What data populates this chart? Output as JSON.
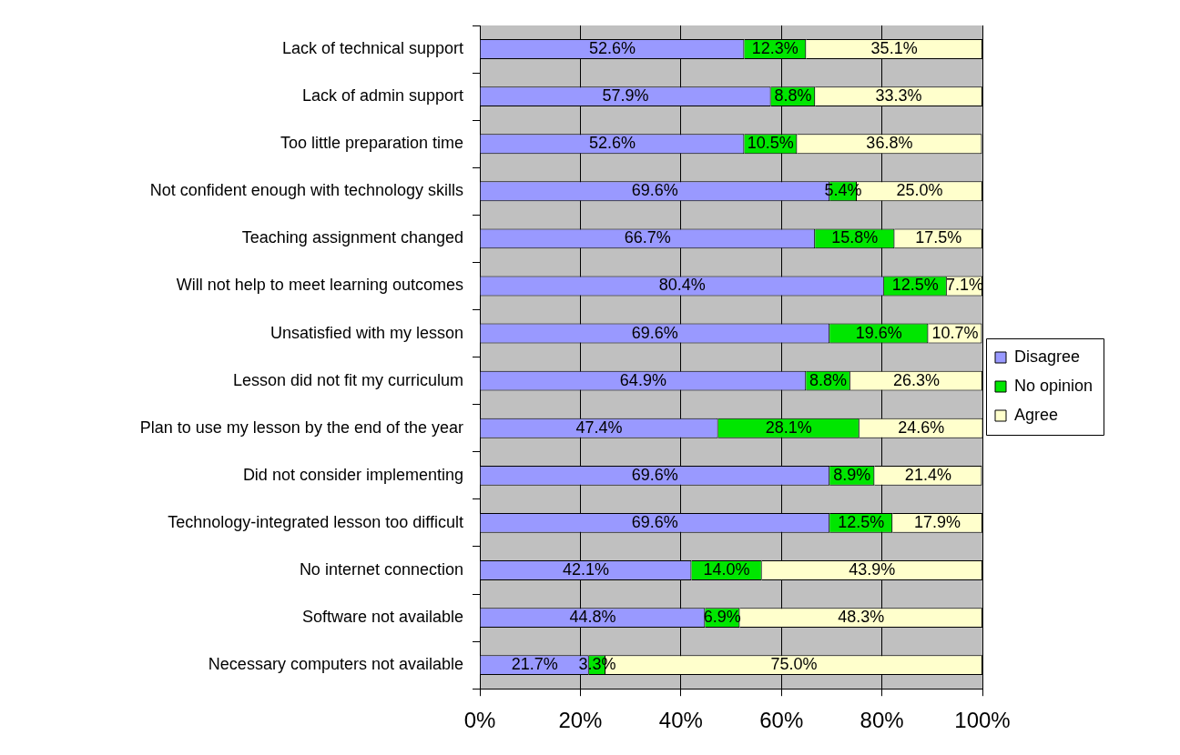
{
  "chart_data": {
    "type": "bar",
    "orientation": "horizontal",
    "stacked": true,
    "grid": "x",
    "legend": "right",
    "categories": [
      "Lack of technical support",
      "Lack of admin support",
      "Too little preparation time",
      "Not confident enough with technology skills",
      "Teaching assignment changed",
      "Will not help to meet learning outcomes",
      "Unsatisfied with my lesson",
      "Lesson did not fit my curriculum",
      "Plan to use my lesson by the end of the year",
      "Did not consider implementing",
      "Technology-integrated lesson too difficult",
      "No internet connection",
      "Software not available",
      "Necessary computers not available"
    ],
    "series": [
      {
        "name": "Disagree",
        "color": "#9999ff",
        "values": [
          52.6,
          57.9,
          52.6,
          69.6,
          66.7,
          80.4,
          69.6,
          64.9,
          47.4,
          69.6,
          69.6,
          42.1,
          44.8,
          21.7
        ],
        "value_labels": [
          "52.6%",
          "57.9%",
          "52.6%",
          "69.6%",
          "66.7%",
          "80.4%",
          "69.6%",
          "64.9%",
          "47.4%",
          "69.6%",
          "69.6%",
          "42.1%",
          "44.8%",
          "21.7%"
        ]
      },
      {
        "name": "No opinion",
        "color": "#00e600",
        "values": [
          12.3,
          8.8,
          10.5,
          5.4,
          15.8,
          12.5,
          19.6,
          8.8,
          28.1,
          8.9,
          12.5,
          14.0,
          6.9,
          3.3
        ],
        "value_labels": [
          "12.3%",
          "8.8%",
          "10.5%",
          "5.4%",
          "15.8%",
          "12.5%",
          "19.6%",
          "8.8%",
          "28.1%",
          "8.9%",
          "12.5%",
          "14.0%",
          "6.9%",
          "3.3%"
        ]
      },
      {
        "name": "Agree",
        "color": "#ffffcc",
        "values": [
          35.1,
          33.3,
          36.8,
          25.0,
          17.5,
          7.1,
          10.7,
          26.3,
          24.6,
          21.4,
          17.9,
          43.9,
          48.3,
          75.0
        ],
        "value_labels": [
          "35.1%",
          "33.3%",
          "36.8%",
          "25.0%",
          "17.5%",
          "7.1%",
          "10.7%",
          "26.3%",
          "24.6%",
          "21.4%",
          "17.9%",
          "43.9%",
          "48.3%",
          "75.0%"
        ]
      }
    ],
    "xlim": [
      0,
      100
    ],
    "xticks": [
      {
        "value": 0,
        "label": "0%"
      },
      {
        "value": 20,
        "label": "20%"
      },
      {
        "value": 40,
        "label": "40%"
      },
      {
        "value": 60,
        "label": "60%"
      },
      {
        "value": 80,
        "label": "80%"
      },
      {
        "value": 100,
        "label": "100%"
      }
    ]
  }
}
